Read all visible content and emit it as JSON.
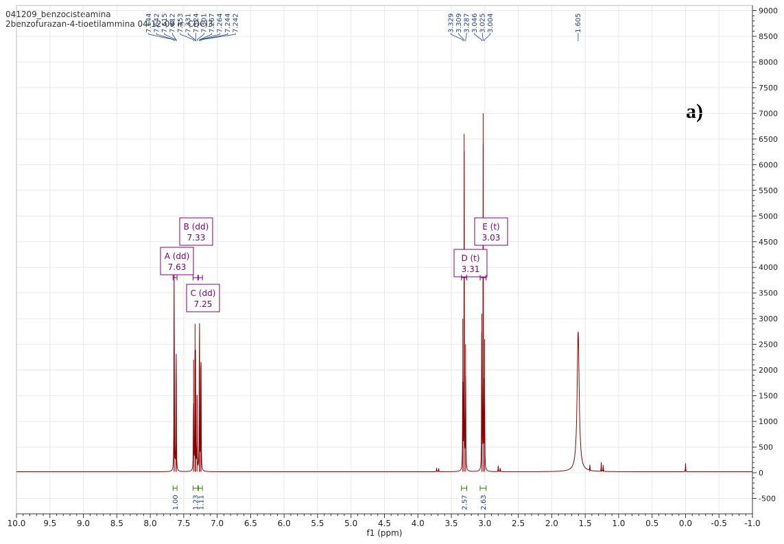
{
  "header": {
    "line1": "041209_benzocisteamina",
    "line2": "2benzofurazan-4-tioetilammina 04-12-09 in CDCl3"
  },
  "panel_label": "a)",
  "colors": {
    "spectrum": "#8b0000",
    "peak_label": "#1f3f8f",
    "multiplet_box": "#800080",
    "integral": "#2e8b00",
    "axis": "#333333"
  },
  "chart_data": {
    "type": "line",
    "xlabel": "f1 (ppm)",
    "ylabel": "",
    "xlim": [
      10.0,
      -1.0
    ],
    "ylim": [
      -800,
      9100
    ],
    "x_reversed": true,
    "x_ticks": [
      "10.0",
      "9.5",
      "9.0",
      "8.5",
      "8.0",
      "7.5",
      "7.0",
      "6.5",
      "6.0",
      "5.5",
      "5.0",
      "4.5",
      "4.0",
      "3.5",
      "3.0",
      "2.5",
      "2.0",
      "1.5",
      "1.0",
      "0.5",
      "0.0",
      "-0.5",
      "-1.0"
    ],
    "y_ticks": [
      "-500",
      "0",
      "500",
      "1000",
      "1500",
      "2000",
      "2500",
      "3000",
      "3500",
      "4000",
      "4500",
      "5000",
      "5500",
      "6000",
      "6500",
      "7000",
      "7500",
      "8000",
      "8500",
      "9000"
    ],
    "grid": true,
    "peaks": [
      {
        "ppm": 7.644,
        "height": 2400
      },
      {
        "ppm": 7.642,
        "height": 2800
      },
      {
        "ppm": 7.615,
        "height": 1800
      },
      {
        "ppm": 7.612,
        "height": 1500
      },
      {
        "ppm": 7.353,
        "height": 2200
      },
      {
        "ppm": 7.331,
        "height": 2900
      },
      {
        "ppm": 7.324,
        "height": 2200
      },
      {
        "ppm": 7.301,
        "height": 1500
      },
      {
        "ppm": 7.267,
        "height": 2000
      },
      {
        "ppm": 7.264,
        "height": 2100
      },
      {
        "ppm": 7.244,
        "height": 1800
      },
      {
        "ppm": 7.242,
        "height": 1700
      },
      {
        "ppm": 3.329,
        "height": 3000
      },
      {
        "ppm": 3.309,
        "height": 6600
      },
      {
        "ppm": 3.287,
        "height": 2500
      },
      {
        "ppm": 3.046,
        "height": 3100
      },
      {
        "ppm": 3.025,
        "height": 7000
      },
      {
        "ppm": 3.004,
        "height": 2600
      },
      {
        "ppm": 1.605,
        "height": 2750,
        "broad": true
      },
      {
        "ppm": 3.72,
        "height": 80
      },
      {
        "ppm": 3.69,
        "height": 80
      },
      {
        "ppm": 2.8,
        "height": 120
      },
      {
        "ppm": 2.77,
        "height": 90
      },
      {
        "ppm": 1.43,
        "height": 120
      },
      {
        "ppm": 1.26,
        "height": 180
      },
      {
        "ppm": 1.23,
        "height": 150
      },
      {
        "ppm": 0.0,
        "height": 180
      }
    ],
    "peak_labels": [
      {
        "text": "7.644",
        "ppm": 7.644
      },
      {
        "text": "7.642",
        "ppm": 7.642
      },
      {
        "text": "7.615",
        "ppm": 7.615
      },
      {
        "text": "7.612",
        "ppm": 7.612
      },
      {
        "text": "7.353",
        "ppm": 7.353
      },
      {
        "text": "7.331",
        "ppm": 7.331
      },
      {
        "text": "7.324",
        "ppm": 7.324
      },
      {
        "text": "7.301",
        "ppm": 7.301
      },
      {
        "text": "7.267",
        "ppm": 7.267
      },
      {
        "text": "7.264",
        "ppm": 7.264
      },
      {
        "text": "7.244",
        "ppm": 7.244
      },
      {
        "text": "7.242",
        "ppm": 7.242
      },
      {
        "text": "3.329",
        "ppm": 3.329
      },
      {
        "text": "3.309",
        "ppm": 3.309
      },
      {
        "text": "3.287",
        "ppm": 3.287
      },
      {
        "text": "3.046",
        "ppm": 3.046
      },
      {
        "text": "3.025",
        "ppm": 3.025
      },
      {
        "text": "3.004",
        "ppm": 3.004
      },
      {
        "text": "1.605",
        "ppm": 1.605
      }
    ],
    "multiplets": [
      {
        "label": "A (dd)",
        "shift": "7.63",
        "ppm": 7.63,
        "range": [
          7.66,
          7.6
        ]
      },
      {
        "label": "B (dd)",
        "shift": "7.33",
        "ppm": 7.33,
        "range": [
          7.36,
          7.29
        ]
      },
      {
        "label": "C (dd)",
        "shift": "7.25",
        "ppm": 7.25,
        "range": [
          7.28,
          7.22
        ]
      },
      {
        "label": "D (t)",
        "shift": "3.31",
        "ppm": 3.31,
        "range": [
          3.35,
          3.27
        ]
      },
      {
        "label": "E (t)",
        "shift": "3.03",
        "ppm": 3.03,
        "range": [
          3.07,
          2.98
        ]
      }
    ],
    "integrals": [
      {
        "value": "1.00",
        "ppm": 7.63,
        "range": [
          7.66,
          7.6
        ]
      },
      {
        "value": "1.23",
        "ppm": 7.33,
        "range": [
          7.36,
          7.29
        ]
      },
      {
        "value": "1.11",
        "ppm": 7.25,
        "range": [
          7.28,
          7.22
        ]
      },
      {
        "value": "2.57",
        "ppm": 3.31,
        "range": [
          3.35,
          3.27
        ]
      },
      {
        "value": "2.63",
        "ppm": 3.03,
        "range": [
          3.07,
          2.98
        ]
      }
    ]
  }
}
